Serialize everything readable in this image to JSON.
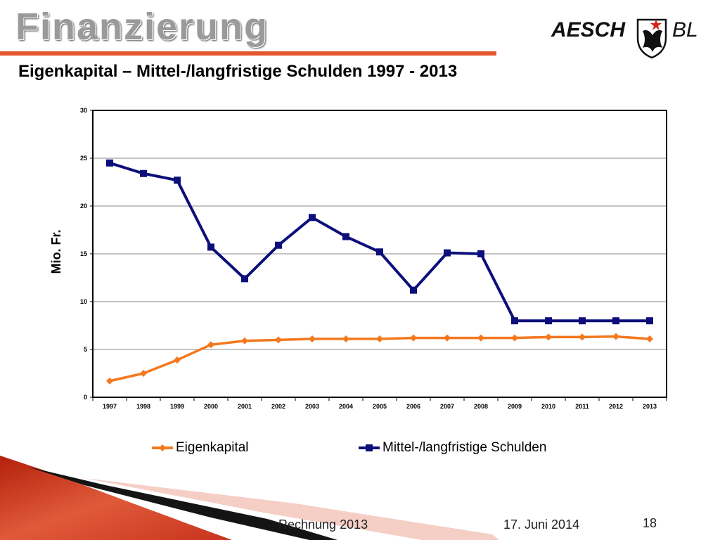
{
  "slide": {
    "title": "Finanzierung",
    "subtitle": "Eigenkapital – Mittel-/langfristige Schulden 1997 - 2013",
    "logo_text": "AESCH",
    "logo_suffix": "BL",
    "footer_left": "Rechnung 2013",
    "footer_date": "17. Juni 2014",
    "page_number": "18",
    "accent_color": "#e2572b"
  },
  "chart_data": {
    "type": "line",
    "title": "",
    "ylabel": "Mio. Fr.",
    "xlabel": "",
    "ylim": [
      0,
      30
    ],
    "yticks": [
      "0",
      "5",
      "10",
      "15",
      "20",
      "25",
      "30"
    ],
    "grid": true,
    "legend_position": "bottom",
    "categories": [
      "1997",
      "1998",
      "1999",
      "2000",
      "2001",
      "2002",
      "2003",
      "2004",
      "2005",
      "2006",
      "2007",
      "2008",
      "2009",
      "2010",
      "2011",
      "2012",
      "2013"
    ],
    "series": [
      {
        "name": "Eigenkapital",
        "color": "#f4781e",
        "marker": "diamond",
        "values": [
          1.7,
          2.5,
          3.9,
          5.5,
          5.9,
          6.0,
          6.1,
          6.1,
          6.1,
          6.2,
          6.2,
          6.2,
          6.2,
          6.3,
          6.3,
          6.35,
          6.1
        ]
      },
      {
        "name": "Mittel-/langfristige Schulden",
        "color": "#0c0f7a",
        "marker": "square",
        "values": [
          24.5,
          23.4,
          22.7,
          15.7,
          12.4,
          15.9,
          18.8,
          16.8,
          15.2,
          11.2,
          15.1,
          15.0,
          8.0,
          8.0,
          8.0,
          8.0,
          8.0
        ]
      }
    ]
  }
}
